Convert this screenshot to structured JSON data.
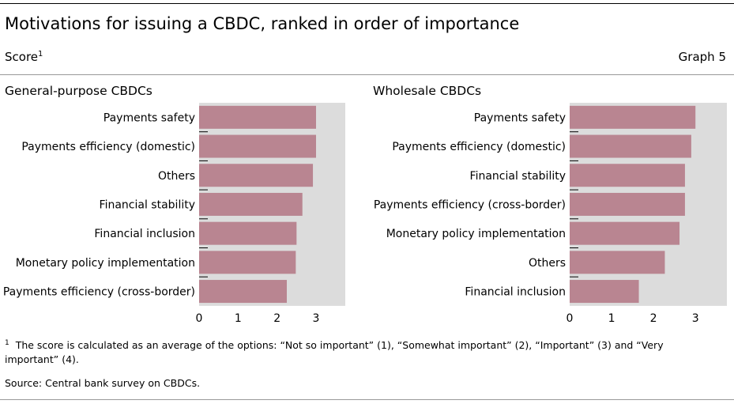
{
  "title": "Motivations for issuing a CBDC, ranked in order of importance",
  "subtitle": "Score",
  "subtitle_sup": "1",
  "graph_label": "Graph 5",
  "footnote_marker": "1",
  "footnote": "The score is calculated as an average of the options: “Not so important” (1), “Somewhat important” (2), “Important” (3) and “Very important” (4).",
  "source": "Source: Central bank survey on CBDCs.",
  "colors": {
    "bar": "#b98591",
    "plot_bg": "#dcdcdc"
  },
  "chart_data": [
    {
      "type": "bar",
      "orientation": "horizontal",
      "title": "General-purpose CBDCs",
      "categories": [
        "Payments safety",
        "Payments efficiency (domestic)",
        "Others",
        "Financial stability",
        "Financial inclusion",
        "Monetary policy implementation",
        "Payments efficiency (cross-border)"
      ],
      "values": [
        3.0,
        3.0,
        2.92,
        2.65,
        2.5,
        2.48,
        2.25
      ],
      "xlim": [
        0,
        3.75
      ],
      "xticks": [
        "0",
        "1",
        "2",
        "3"
      ],
      "grid": false
    },
    {
      "type": "bar",
      "orientation": "horizontal",
      "title": "Wholesale CBDCs",
      "categories": [
        "Payments safety",
        "Payments efficiency (domestic)",
        "Financial stability",
        "Payments efficiency (cross-border)",
        "Monetary policy implementation",
        "Others",
        "Financial inclusion"
      ],
      "values": [
        3.0,
        2.9,
        2.75,
        2.75,
        2.62,
        2.27,
        1.65
      ],
      "xlim": [
        0,
        3.75
      ],
      "xticks": [
        "0",
        "1",
        "2",
        "3"
      ],
      "grid": false
    }
  ]
}
